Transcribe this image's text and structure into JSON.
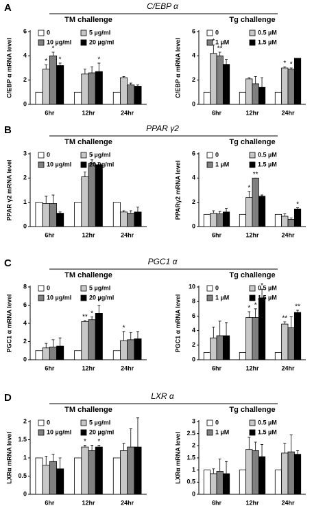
{
  "panels": [
    {
      "label": "A",
      "gene": "C/EBP α"
    },
    {
      "label": "B",
      "gene": "PPAR γ2"
    },
    {
      "label": "C",
      "gene": "PGC1 α"
    },
    {
      "label": "D",
      "gene": "LXR α"
    }
  ],
  "chart_data": [
    {
      "type": "bar",
      "title": "TM challenge",
      "ylabel": "C/EBP α mRNA level",
      "categories": [
        "6hr",
        "12hr",
        "24hr"
      ],
      "ylim": [
        0,
        6
      ],
      "yticks": [
        0,
        2,
        4,
        6
      ],
      "series": [
        {
          "name": "0",
          "color": "#ffffff",
          "values": [
            1,
            1,
            1
          ]
        },
        {
          "name": "5 µg/ml",
          "color": "#c8c8c8",
          "values": [
            2.9,
            2.5,
            2.2
          ],
          "errors": [
            0.35,
            0.4,
            0.1
          ],
          "stars": [
            "*",
            null,
            null
          ]
        },
        {
          "name": "10 µg/ml",
          "color": "#808080",
          "values": [
            4.0,
            2.6,
            1.6
          ],
          "errors": [
            0.3,
            0.5,
            0.15
          ],
          "stars": [
            "*",
            null,
            null
          ]
        },
        {
          "name": "20 µg/ml",
          "color": "#000000",
          "values": [
            3.2,
            2.7,
            1.5
          ],
          "errors": [
            0.2,
            0.7,
            0.1
          ],
          "stars": [
            "*",
            "*",
            null
          ]
        }
      ]
    },
    {
      "type": "bar",
      "title": "Tg challenge",
      "ylabel": "C/EBP α mRNA level",
      "categories": [
        "6hr",
        "12hr",
        "24hr"
      ],
      "ylim": [
        0,
        6
      ],
      "yticks": [
        0,
        2,
        4,
        6
      ],
      "series": [
        {
          "name": "0",
          "color": "#ffffff",
          "values": [
            1,
            1,
            1
          ]
        },
        {
          "name": "0.5 µM",
          "color": "#c8c8c8",
          "values": [
            4.2,
            2.1,
            3.0
          ],
          "errors": [
            0.7,
            0.1,
            0.1
          ],
          "stars": [
            "*",
            null,
            "*"
          ]
        },
        {
          "name": "1 µM",
          "color": "#808080",
          "values": [
            4.0,
            1.7,
            2.9
          ],
          "errors": [
            0.3,
            0.6,
            0.1
          ],
          "stars": [
            "**",
            null,
            "*"
          ]
        },
        {
          "name": "1.5 µM",
          "color": "#000000",
          "values": [
            3.3,
            1.4,
            3.8
          ],
          "errors": [
            0.4,
            0.8,
            0
          ],
          "stars": [
            null,
            null,
            null
          ]
        }
      ]
    },
    {
      "type": "bar",
      "title": "TM challenge",
      "ylabel": "PPAR γ2 mRNA level",
      "categories": [
        "6hr",
        "12hr",
        "24hr"
      ],
      "ylim": [
        0,
        3
      ],
      "yticks": [
        0,
        1,
        2,
        3
      ],
      "series": [
        {
          "name": "0",
          "color": "#ffffff",
          "values": [
            1,
            1,
            1
          ]
        },
        {
          "name": "5 µg/ml",
          "color": "#c8c8c8",
          "values": [
            0.95,
            2.05,
            0.6
          ],
          "errors": [
            0.3,
            0.2,
            0.05
          ],
          "stars": [
            null,
            "*",
            null
          ]
        },
        {
          "name": "10 µg/ml",
          "color": "#808080",
          "values": [
            0.95,
            2.6,
            0.55
          ],
          "errors": [
            0.35,
            0.15,
            0.1
          ],
          "stars": [
            null,
            "*",
            null
          ]
        },
        {
          "name": "20 µg/ml",
          "color": "#000000",
          "values": [
            0.55,
            2.55,
            0.6
          ],
          "errors": [
            0.05,
            0.1,
            0.2
          ],
          "stars": [
            null,
            null,
            null
          ]
        }
      ]
    },
    {
      "type": "bar",
      "title": "Tg challenge",
      "ylabel": "PPARγ2 mRNA level",
      "categories": [
        "6hr",
        "12hr",
        "24hr"
      ],
      "ylim": [
        0,
        6
      ],
      "yticks": [
        0,
        2,
        4,
        6
      ],
      "series": [
        {
          "name": "0",
          "color": "#ffffff",
          "values": [
            1,
            1,
            1
          ]
        },
        {
          "name": "0.5 µM",
          "color": "#c8c8c8",
          "values": [
            1.1,
            2.4,
            0.85
          ],
          "errors": [
            0.2,
            0.5,
            0.2
          ],
          "stars": [
            null,
            "*",
            null
          ]
        },
        {
          "name": "1 µM",
          "color": "#808080",
          "values": [
            1.05,
            4.0,
            0.6
          ],
          "errors": [
            0.2,
            0,
            0.1
          ],
          "stars": [
            null,
            "**",
            null
          ]
        },
        {
          "name": "1.5 µM",
          "color": "#000000",
          "values": [
            1.2,
            2.5,
            1.45
          ],
          "errors": [
            0.3,
            0.1,
            0.1
          ],
          "stars": [
            null,
            null,
            "*"
          ]
        }
      ]
    },
    {
      "type": "bar",
      "title": "TM challenge",
      "ylabel": "PGC1 α mRNA level",
      "categories": [
        "6hr",
        "12hr",
        "24hr"
      ],
      "ylim": [
        0,
        8
      ],
      "yticks": [
        0,
        2,
        4,
        6,
        8
      ],
      "series": [
        {
          "name": "0",
          "color": "#ffffff",
          "values": [
            1,
            1,
            1
          ]
        },
        {
          "name": "5 µg/ml",
          "color": "#c8c8c8",
          "values": [
            1.3,
            4.2,
            2.1
          ],
          "errors": [
            0.5,
            0.1,
            1.0
          ],
          "stars": [
            null,
            "**",
            "*"
          ]
        },
        {
          "name": "10 µg/ml",
          "color": "#808080",
          "values": [
            1.4,
            4.4,
            2.2
          ],
          "errors": [
            0.8,
            0.3,
            0.8
          ],
          "stars": [
            null,
            "*",
            null
          ]
        },
        {
          "name": "20 µg/ml",
          "color": "#000000",
          "values": [
            1.5,
            5.1,
            2.3
          ],
          "errors": [
            0.9,
            0.9,
            0.8
          ],
          "stars": [
            null,
            "*",
            null
          ]
        }
      ]
    },
    {
      "type": "bar",
      "title": "Tg challenge",
      "ylabel": "PGC1 α mRNA level",
      "categories": [
        "6hr",
        "12hr",
        "24hr"
      ],
      "ylim": [
        0,
        10
      ],
      "yticks": [
        0,
        2,
        4,
        6,
        8,
        10
      ],
      "series": [
        {
          "name": "0",
          "color": "#ffffff",
          "values": [
            1,
            1,
            1
          ]
        },
        {
          "name": "0.5 µM",
          "color": "#c8c8c8",
          "values": [
            3.0,
            5.8,
            4.9
          ],
          "errors": [
            1.5,
            0.8,
            0.3
          ],
          "stars": [
            null,
            "*",
            "**"
          ]
        },
        {
          "name": "1 µM",
          "color": "#808080",
          "values": [
            3.3,
            5.8,
            4.4
          ],
          "errors": [
            2.0,
            1.2,
            1.5
          ],
          "stars": [
            null,
            "*",
            null
          ]
        },
        {
          "name": "1.5 µM",
          "color": "#000000",
          "values": [
            3.3,
            8.5,
            6.5
          ],
          "errors": [
            1.8,
            1.2,
            0.3
          ],
          "stars": [
            null,
            "*",
            "**"
          ]
        }
      ]
    },
    {
      "type": "bar",
      "title": "TM challenge",
      "ylabel": "LXRα mRNA level",
      "categories": [
        "6hr",
        "12hr",
        "24hr"
      ],
      "ylim": [
        0,
        2
      ],
      "yticks": [
        0,
        0.5,
        1,
        1.5,
        2
      ],
      "series": [
        {
          "name": "0",
          "color": "#ffffff",
          "values": [
            1,
            1,
            1
          ]
        },
        {
          "name": "5 µg/ml",
          "color": "#c8c8c8",
          "values": [
            0.8,
            1.3,
            1.2
          ],
          "errors": [
            0.25,
            0.05,
            0.2
          ],
          "stars": [
            null,
            "*",
            null
          ]
        },
        {
          "name": "10 µg/ml",
          "color": "#808080",
          "values": [
            0.9,
            1.2,
            1.3
          ],
          "errors": [
            0.2,
            0.15,
            0.5
          ],
          "stars": [
            null,
            null,
            null
          ]
        },
        {
          "name": "20 µg/ml",
          "color": "#000000",
          "values": [
            0.7,
            1.3,
            1.3
          ],
          "errors": [
            0.3,
            0.05,
            0.8
          ],
          "stars": [
            null,
            "*",
            null
          ]
        }
      ]
    },
    {
      "type": "bar",
      "title": "Tg challenge",
      "ylabel": "LXRα mRNA level",
      "categories": [
        "6hr",
        "12hr",
        "24hr"
      ],
      "ylim": [
        0,
        3
      ],
      "yticks": [
        0,
        0.5,
        1,
        1.5,
        2,
        2.5,
        3
      ],
      "series": [
        {
          "name": "0",
          "color": "#ffffff",
          "values": [
            1,
            1,
            1
          ]
        },
        {
          "name": "0.5 µM",
          "color": "#c8c8c8",
          "values": [
            0.85,
            1.85,
            1.7
          ],
          "errors": [
            0.2,
            0.5,
            0.4
          ],
          "stars": [
            null,
            null,
            null
          ]
        },
        {
          "name": "1 µM",
          "color": "#808080",
          "values": [
            0.95,
            1.8,
            1.75
          ],
          "errors": [
            0.5,
            0.35,
            0.7
          ],
          "stars": [
            null,
            null,
            null
          ]
        },
        {
          "name": "1.5 µM",
          "color": "#000000",
          "values": [
            0.85,
            1.55,
            1.65
          ],
          "errors": [
            0.5,
            0.5,
            0.15
          ],
          "stars": [
            null,
            null,
            null
          ]
        }
      ]
    }
  ]
}
